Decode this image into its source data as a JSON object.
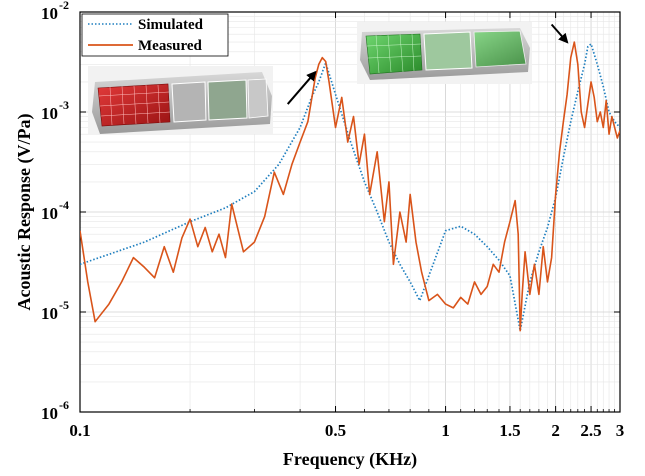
{
  "chart_data": {
    "type": "line",
    "title": "",
    "xlabel": "Frequency (KHz)",
    "ylabel": "Acoustic Response (V/Pa)",
    "xscale": "log",
    "yscale": "log",
    "xlim": [
      0.1,
      3
    ],
    "ylim": [
      1e-06,
      0.01
    ],
    "grid": true,
    "legend_position": "top-left",
    "xticks": [
      {
        "value": 0.1,
        "label": "0.1"
      },
      {
        "value": 0.5,
        "label": "0.5"
      },
      {
        "value": 1,
        "label": "1"
      },
      {
        "value": 1.5,
        "label": "1.5"
      },
      {
        "value": 2,
        "label": "2"
      },
      {
        "value": 2.5,
        "label": "2.5"
      },
      {
        "value": 3,
        "label": "3"
      }
    ],
    "yticks": [
      {
        "value": 1e-06,
        "base": "10",
        "exp": "-6"
      },
      {
        "value": 1e-05,
        "base": "10",
        "exp": "-5"
      },
      {
        "value": 0.0001,
        "base": "10",
        "exp": "-4"
      },
      {
        "value": 0.001,
        "base": "10",
        "exp": "-3"
      },
      {
        "value": 0.01,
        "base": "10",
        "exp": "-2"
      }
    ],
    "series": [
      {
        "name": "Simulated",
        "color": "#1f7fbf",
        "style": "dotted",
        "x": [
          0.1,
          0.15,
          0.2,
          0.25,
          0.3,
          0.35,
          0.4,
          0.43,
          0.45,
          0.47,
          0.5,
          0.55,
          0.6,
          0.65,
          0.7,
          0.75,
          0.8,
          0.85,
          0.9,
          1.0,
          1.1,
          1.2,
          1.3,
          1.4,
          1.5,
          1.6,
          1.7,
          1.8,
          1.9,
          2.0,
          2.1,
          2.2,
          2.3,
          2.4,
          2.45,
          2.5,
          2.6,
          2.7,
          2.8,
          2.9,
          3.0
        ],
        "y": [
          3e-05,
          5e-05,
          8e-05,
          0.00011,
          0.00016,
          0.0003,
          0.0007,
          0.0014,
          0.002,
          0.0031,
          0.0015,
          0.0005,
          0.0002,
          0.0001,
          5e-05,
          3e-05,
          2e-05,
          1.3e-05,
          2.3e-05,
          6.5e-05,
          7.2e-05,
          6e-05,
          4.5e-05,
          3.3e-05,
          2.3e-05,
          6.5e-06,
          2e-05,
          4e-05,
          7e-05,
          0.00014,
          0.00035,
          0.0008,
          0.0016,
          0.003,
          0.0045,
          0.0048,
          0.003,
          0.0018,
          0.001,
          0.0008,
          0.0007
        ]
      },
      {
        "name": "Measured",
        "color": "#d9541a",
        "style": "solid",
        "x": [
          0.1,
          0.105,
          0.11,
          0.12,
          0.13,
          0.14,
          0.15,
          0.16,
          0.17,
          0.18,
          0.19,
          0.2,
          0.21,
          0.22,
          0.23,
          0.24,
          0.25,
          0.26,
          0.28,
          0.3,
          0.32,
          0.34,
          0.36,
          0.38,
          0.4,
          0.42,
          0.44,
          0.45,
          0.46,
          0.47,
          0.48,
          0.5,
          0.52,
          0.54,
          0.56,
          0.58,
          0.6,
          0.62,
          0.65,
          0.68,
          0.7,
          0.72,
          0.75,
          0.78,
          0.8,
          0.83,
          0.86,
          0.9,
          0.95,
          1.0,
          1.05,
          1.1,
          1.15,
          1.2,
          1.25,
          1.3,
          1.35,
          1.4,
          1.45,
          1.5,
          1.55,
          1.58,
          1.6,
          1.62,
          1.65,
          1.7,
          1.75,
          1.8,
          1.85,
          1.9,
          1.95,
          2.0,
          2.05,
          2.1,
          2.15,
          2.2,
          2.25,
          2.3,
          2.35,
          2.4,
          2.45,
          2.5,
          2.55,
          2.6,
          2.65,
          2.7,
          2.75,
          2.8,
          2.85,
          2.9,
          2.95,
          3.0
        ],
        "y": [
          6.5e-05,
          2e-05,
          8e-06,
          1.2e-05,
          2e-05,
          3.5e-05,
          2.8e-05,
          2.2e-05,
          4.5e-05,
          2.5e-05,
          5.5e-05,
          8.5e-05,
          4.5e-05,
          7e-05,
          4e-05,
          6e-05,
          3.5e-05,
          0.00012,
          4e-05,
          5e-05,
          9e-05,
          0.00025,
          0.00015,
          0.0003,
          0.0005,
          0.0008,
          0.0022,
          0.003,
          0.0035,
          0.0032,
          0.002,
          0.0007,
          0.0014,
          0.0005,
          0.0009,
          0.0003,
          0.0006,
          0.00015,
          0.0004,
          8e-05,
          0.0002,
          3e-05,
          0.0001,
          5e-05,
          0.00015,
          5e-05,
          2.5e-05,
          1.3e-05,
          1.5e-05,
          1.2e-05,
          1.1e-05,
          1.4e-05,
          1.2e-05,
          2e-05,
          1.5e-05,
          1.8e-05,
          3e-05,
          2.5e-05,
          5e-05,
          8e-05,
          0.00013,
          6e-05,
          6.5e-06,
          1.5e-05,
          4e-05,
          1.5e-05,
          3e-05,
          1.5e-05,
          4.5e-05,
          2e-05,
          3.5e-05,
          0.00015,
          0.0004,
          0.0008,
          0.0015,
          0.0035,
          0.005,
          0.003,
          0.001,
          0.0007,
          0.0012,
          0.002,
          0.0014,
          0.0008,
          0.001,
          0.0007,
          0.0013,
          0.0006,
          0.0009,
          0.0007,
          0.00055,
          0.00065
        ]
      }
    ],
    "annotations": [
      {
        "type": "arrow",
        "from_x": 0.37,
        "from_y": 0.0012,
        "to_x": 0.44,
        "to_y": 0.0025
      },
      {
        "type": "arrow",
        "from_x": 1.95,
        "from_y": 0.0075,
        "to_x": 2.15,
        "to_y": 0.005
      }
    ],
    "insets": [
      {
        "name": "inset-image-red",
        "description": "3D render of device with red highlighted panel"
      },
      {
        "name": "inset-image-green",
        "description": "3D render of device with green highlighted panel"
      }
    ]
  }
}
